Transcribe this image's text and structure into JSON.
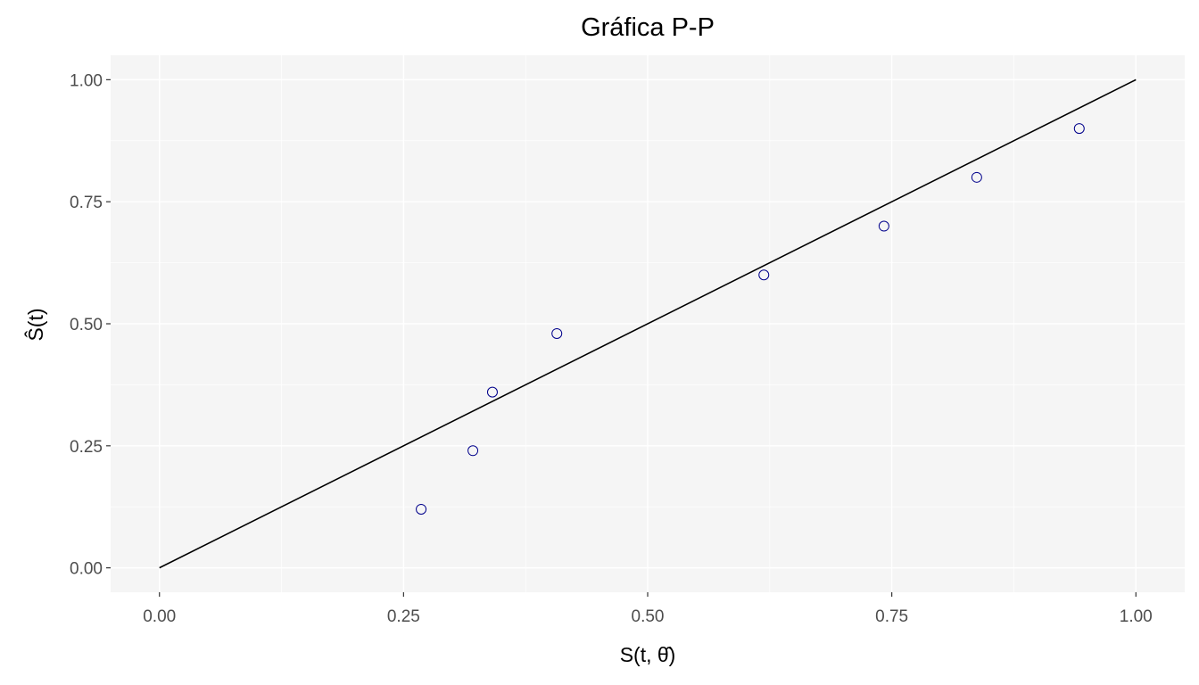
{
  "chart_data": {
    "type": "scatter",
    "title": "Gráfica P-P",
    "xlabel": "S(t, θ̂)",
    "ylabel": "Ŝ(t)",
    "xlim": [
      -0.05,
      1.05
    ],
    "ylim": [
      -0.05,
      1.05
    ],
    "x_ticks": [
      0.0,
      0.25,
      0.5,
      0.75,
      1.0
    ],
    "x_tick_labels": [
      "0.00",
      "0.25",
      "0.50",
      "0.75",
      "1.00"
    ],
    "y_ticks": [
      0.0,
      0.25,
      0.5,
      0.75,
      1.0
    ],
    "y_tick_labels": [
      "0.00",
      "0.25",
      "0.50",
      "0.75",
      "1.00"
    ],
    "grid": true,
    "reference_line": {
      "x": [
        0,
        1
      ],
      "y": [
        0,
        1
      ]
    },
    "points": [
      {
        "x": 0.268,
        "y": 0.12
      },
      {
        "x": 0.321,
        "y": 0.24
      },
      {
        "x": 0.341,
        "y": 0.36
      },
      {
        "x": 0.407,
        "y": 0.48
      },
      {
        "x": 0.619,
        "y": 0.6
      },
      {
        "x": 0.742,
        "y": 0.7
      },
      {
        "x": 0.837,
        "y": 0.8
      },
      {
        "x": 0.942,
        "y": 0.9
      }
    ],
    "colors": {
      "panel": "#f5f5f5",
      "grid": "#ffffff",
      "line": "#000000",
      "point": "#00008b"
    }
  }
}
